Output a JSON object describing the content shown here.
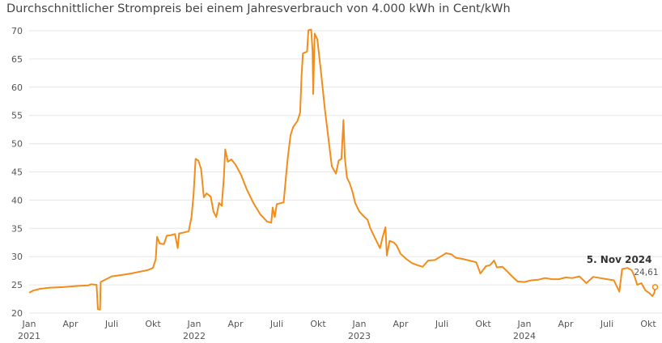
{
  "chart_data": {
    "type": "line",
    "title": "Durchschnittlicher Strompreis bei einem Jahresverbrauch von 4.000 kWh in Cent/kWh",
    "xlabel": "",
    "ylabel": "",
    "ylim": [
      20,
      70
    ],
    "yticks": [
      20,
      25,
      30,
      35,
      40,
      45,
      50,
      55,
      60,
      65,
      70
    ],
    "grid": true,
    "xticks": [
      {
        "month": 1,
        "label": "Jan",
        "year_label": "2021"
      },
      {
        "month": 4,
        "label": "Apr",
        "year_label": ""
      },
      {
        "month": 7,
        "label": "Juli",
        "year_label": ""
      },
      {
        "month": 10,
        "label": "Okt",
        "year_label": ""
      },
      {
        "month": 13,
        "label": "Jan",
        "year_label": "2022"
      },
      {
        "month": 16,
        "label": "Apr",
        "year_label": ""
      },
      {
        "month": 19,
        "label": "Juli",
        "year_label": ""
      },
      {
        "month": 22,
        "label": "Okt",
        "year_label": ""
      },
      {
        "month": 25,
        "label": "Jan",
        "year_label": "2023"
      },
      {
        "month": 28,
        "label": "Apr",
        "year_label": ""
      },
      {
        "month": 31,
        "label": "Juli",
        "year_label": ""
      },
      {
        "month": 34,
        "label": "Okt",
        "year_label": ""
      },
      {
        "month": 37,
        "label": "Jan",
        "year_label": "2024"
      },
      {
        "month": 40,
        "label": "Apr",
        "year_label": ""
      },
      {
        "month": 43,
        "label": "Juli",
        "year_label": ""
      },
      {
        "month": 46,
        "label": "Okt",
        "year_label": ""
      }
    ],
    "series": [
      {
        "color": "#f28c1a",
        "points": [
          [
            1.0,
            23.6
          ],
          [
            1.3,
            24.0
          ],
          [
            1.8,
            24.3
          ],
          [
            2.5,
            24.5
          ],
          [
            3.5,
            24.6
          ],
          [
            4.5,
            24.8
          ],
          [
            5.3,
            24.9
          ],
          [
            5.5,
            25.1
          ],
          [
            5.9,
            25.0
          ],
          [
            6.0,
            20.7
          ],
          [
            6.15,
            20.6
          ],
          [
            6.2,
            25.5
          ],
          [
            6.6,
            26.0
          ],
          [
            7.0,
            26.5
          ],
          [
            7.6,
            26.7
          ],
          [
            8.4,
            27.0
          ],
          [
            9.0,
            27.3
          ],
          [
            9.6,
            27.6
          ],
          [
            10.0,
            28.0
          ],
          [
            10.2,
            29.5
          ],
          [
            10.3,
            33.5
          ],
          [
            10.5,
            32.3
          ],
          [
            10.8,
            32.2
          ],
          [
            11.0,
            33.7
          ],
          [
            11.3,
            33.8
          ],
          [
            11.6,
            34.0
          ],
          [
            11.8,
            31.5
          ],
          [
            11.9,
            34.1
          ],
          [
            12.3,
            34.3
          ],
          [
            12.6,
            34.5
          ],
          [
            12.8,
            37.0
          ],
          [
            12.95,
            41.0
          ],
          [
            13.1,
            47.3
          ],
          [
            13.3,
            47.0
          ],
          [
            13.5,
            45.5
          ],
          [
            13.7,
            40.5
          ],
          [
            13.9,
            41.2
          ],
          [
            14.2,
            40.6
          ],
          [
            14.4,
            38.0
          ],
          [
            14.6,
            37.0
          ],
          [
            14.8,
            39.5
          ],
          [
            15.0,
            39.0
          ],
          [
            15.15,
            44.0
          ],
          [
            15.25,
            49.0
          ],
          [
            15.45,
            46.8
          ],
          [
            15.7,
            47.2
          ],
          [
            16.0,
            46.3
          ],
          [
            16.4,
            44.5
          ],
          [
            16.8,
            42.0
          ],
          [
            17.3,
            39.5
          ],
          [
            17.8,
            37.5
          ],
          [
            18.3,
            36.2
          ],
          [
            18.6,
            36.0
          ],
          [
            18.7,
            38.7
          ],
          [
            18.85,
            37.0
          ],
          [
            19.0,
            39.3
          ],
          [
            19.5,
            39.6
          ],
          [
            19.7,
            45.0
          ],
          [
            19.8,
            47.5
          ],
          [
            20.0,
            51.5
          ],
          [
            20.2,
            53.0
          ],
          [
            20.5,
            54.0
          ],
          [
            20.7,
            55.5
          ],
          [
            20.8,
            62.0
          ],
          [
            20.9,
            66.0
          ],
          [
            21.2,
            66.3
          ],
          [
            21.3,
            70.1
          ],
          [
            21.5,
            70.2
          ],
          [
            21.6,
            66.5
          ],
          [
            21.65,
            58.8
          ],
          [
            21.75,
            69.5
          ],
          [
            21.95,
            68.5
          ],
          [
            22.2,
            63.0
          ],
          [
            22.5,
            56.0
          ],
          [
            22.8,
            50.0
          ],
          [
            23.0,
            46.0
          ],
          [
            23.3,
            44.7
          ],
          [
            23.5,
            47.0
          ],
          [
            23.7,
            47.3
          ],
          [
            23.85,
            54.2
          ],
          [
            23.95,
            47.5
          ],
          [
            24.1,
            44.0
          ],
          [
            24.3,
            43.0
          ],
          [
            24.5,
            41.5
          ],
          [
            24.7,
            39.5
          ],
          [
            25.0,
            38.0
          ],
          [
            25.3,
            37.2
          ],
          [
            25.6,
            36.5
          ],
          [
            25.8,
            35.0
          ],
          [
            26.1,
            33.5
          ],
          [
            26.3,
            32.5
          ],
          [
            26.5,
            31.5
          ],
          [
            26.7,
            33.5
          ],
          [
            26.9,
            35.2
          ],
          [
            27.0,
            30.2
          ],
          [
            27.2,
            32.8
          ],
          [
            27.5,
            32.5
          ],
          [
            27.7,
            32.0
          ],
          [
            28.0,
            30.5
          ],
          [
            28.4,
            29.6
          ],
          [
            28.8,
            28.9
          ],
          [
            29.2,
            28.5
          ],
          [
            29.6,
            28.2
          ],
          [
            30.0,
            29.3
          ],
          [
            30.5,
            29.4
          ],
          [
            30.9,
            30.0
          ],
          [
            31.3,
            30.6
          ],
          [
            31.7,
            30.4
          ],
          [
            32.0,
            29.8
          ],
          [
            32.5,
            29.6
          ],
          [
            33.0,
            29.3
          ],
          [
            33.5,
            29.0
          ],
          [
            33.8,
            27.0
          ],
          [
            34.2,
            28.3
          ],
          [
            34.5,
            28.5
          ],
          [
            34.8,
            29.3
          ],
          [
            35.0,
            28.1
          ],
          [
            35.4,
            28.2
          ],
          [
            35.7,
            27.5
          ],
          [
            36.1,
            26.5
          ],
          [
            36.5,
            25.6
          ],
          [
            37.0,
            25.5
          ],
          [
            37.5,
            25.8
          ],
          [
            38.0,
            25.9
          ],
          [
            38.5,
            26.2
          ],
          [
            39.0,
            26.0
          ],
          [
            39.5,
            26.0
          ],
          [
            40.0,
            26.3
          ],
          [
            40.5,
            26.2
          ],
          [
            41.0,
            26.5
          ],
          [
            41.5,
            25.3
          ],
          [
            42.0,
            26.4
          ],
          [
            42.5,
            26.2
          ],
          [
            43.0,
            26.0
          ],
          [
            43.5,
            25.8
          ],
          [
            43.9,
            23.8
          ],
          [
            44.1,
            27.8
          ],
          [
            44.5,
            28.0
          ],
          [
            44.8,
            27.6
          ],
          [
            45.0,
            26.5
          ],
          [
            45.2,
            25.0
          ],
          [
            45.5,
            25.3
          ],
          [
            45.8,
            24.0
          ],
          [
            46.1,
            23.5
          ],
          [
            46.3,
            23.0
          ],
          [
            46.45,
            23.6
          ],
          [
            46.5,
            24.61
          ]
        ]
      }
    ],
    "annotation": {
      "date": "5. Nov 2024",
      "value": "24,61"
    }
  }
}
